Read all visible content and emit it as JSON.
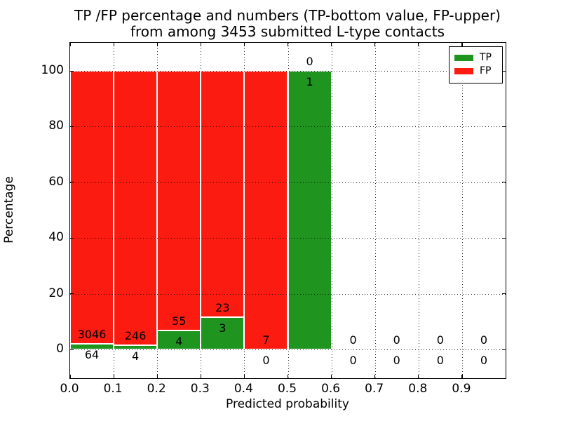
{
  "figure": {
    "title_line1": "TP /FP percentage and numbers (TP-bottom value, FP-upper)",
    "title_line2": "from among 3453 submitted L-type contacts",
    "xlabel": "Predicted probability",
    "ylabel": "Percentage"
  },
  "chart_data": {
    "type": "bar",
    "stacked": true,
    "title": "TP /FP percentage and numbers (TP-bottom value, FP-upper) from among 3453 submitted L-type contacts",
    "total_submitted": 3453,
    "xlabel": "Predicted probability",
    "ylabel": "Percentage",
    "xlim": [
      0.0,
      1.0
    ],
    "ylim": [
      -10,
      110
    ],
    "grid": "dotted",
    "legend_position": "upper-right",
    "x_tick_labels": [
      "0.0",
      "0.1",
      "0.2",
      "0.3",
      "0.4",
      "0.5",
      "0.6",
      "0.7",
      "0.8",
      "0.9"
    ],
    "y_tick_values": [
      0,
      20,
      40,
      60,
      80,
      100
    ],
    "colors": {
      "tp": "#1f941f",
      "fp": "#fb1b10"
    },
    "legend": [
      {
        "label": "TP",
        "series": "tp"
      },
      {
        "label": "FP",
        "series": "fp"
      }
    ],
    "bins": [
      {
        "x0": 0.0,
        "x1": 0.1,
        "tp": 64,
        "fp": 3046
      },
      {
        "x0": 0.1,
        "x1": 0.2,
        "tp": 4,
        "fp": 246
      },
      {
        "x0": 0.2,
        "x1": 0.3,
        "tp": 4,
        "fp": 55
      },
      {
        "x0": 0.3,
        "x1": 0.4,
        "tp": 3,
        "fp": 23
      },
      {
        "x0": 0.4,
        "x1": 0.5,
        "tp": 0,
        "fp": 7
      },
      {
        "x0": 0.5,
        "x1": 0.6,
        "tp": 1,
        "fp": 0
      },
      {
        "x0": 0.6,
        "x1": 0.7,
        "tp": 0,
        "fp": 0
      },
      {
        "x0": 0.7,
        "x1": 0.8,
        "tp": 0,
        "fp": 0
      },
      {
        "x0": 0.8,
        "x1": 0.9,
        "tp": 0,
        "fp": 0
      },
      {
        "x0": 0.9,
        "x1": 1.0,
        "tp": 0,
        "fp": 0
      }
    ]
  }
}
